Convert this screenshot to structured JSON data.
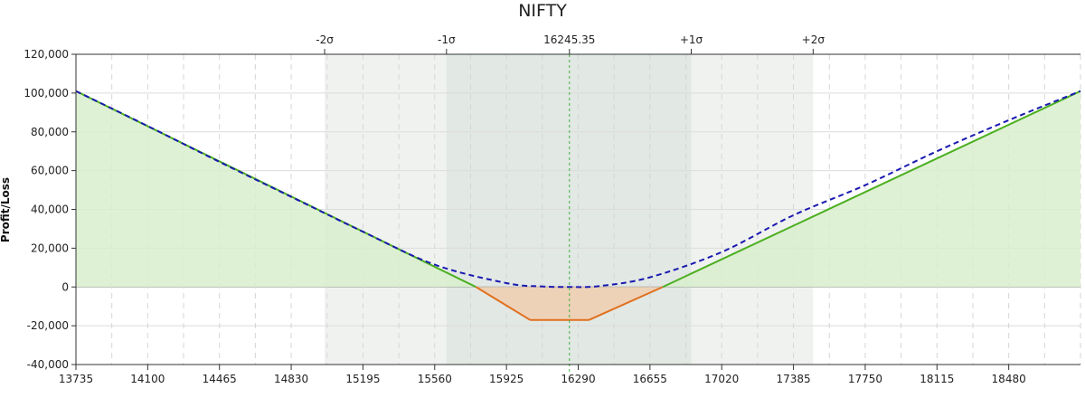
{
  "chart_data": {
    "type": "area",
    "title": "NIFTY",
    "xlabel": "",
    "ylabel": "Profit/Loss",
    "xlim": [
      13735,
      18845
    ],
    "ylim": [
      -40000,
      120000
    ],
    "x_ticks": [
      13735,
      14100,
      14465,
      14830,
      15195,
      15560,
      15925,
      16290,
      16655,
      17020,
      17385,
      17750,
      18115,
      18480
    ],
    "y_ticks": [
      -40000,
      -20000,
      0,
      20000,
      40000,
      60000,
      80000,
      100000,
      120000
    ],
    "y_tick_labels": [
      "-40,000",
      "-20,000",
      "0",
      "20,000",
      "40,000",
      "60,000",
      "80,000",
      "100,000",
      "120,000"
    ],
    "grid": true,
    "spot": {
      "label": "16245.35",
      "x": 16245.35
    },
    "sigma_bands": [
      {
        "label": "-2σ",
        "x": 15000
      },
      {
        "label": "-1σ",
        "x": 15620
      },
      {
        "label": "+1σ",
        "x": 16865
      },
      {
        "label": "+2σ",
        "x": 17485
      }
    ],
    "series": [
      {
        "style": "solid",
        "colors": {
          "profit": "#4caf20",
          "loss": "#e0701e"
        },
        "x": [
          13735,
          15770,
          16045,
          16345,
          16720,
          18845
        ],
        "y": [
          101000,
          0,
          -17000,
          -17000,
          0,
          101000
        ]
      },
      {
        "style": "dashed",
        "color": "#1a1ab0",
        "x": [
          13735,
          14100,
          14465,
          14830,
          15195,
          15560,
          15925,
          16100,
          16245.35,
          16400,
          16655,
          17020,
          17385,
          17750,
          18115,
          18480,
          18845
        ],
        "y": [
          101000,
          83000,
          64500,
          46500,
          28500,
          11500,
          2000,
          300,
          0,
          500,
          5000,
          18000,
          37000,
          52500,
          70000,
          86000,
          101000
        ]
      }
    ],
    "colors": {
      "profit_fill": "#d8eecd",
      "loss_fill": "#eecfb2",
      "band_outer": "#f0f2f0",
      "band_inner": "#e2e8e4",
      "spot_line": "#3cb03c"
    }
  }
}
